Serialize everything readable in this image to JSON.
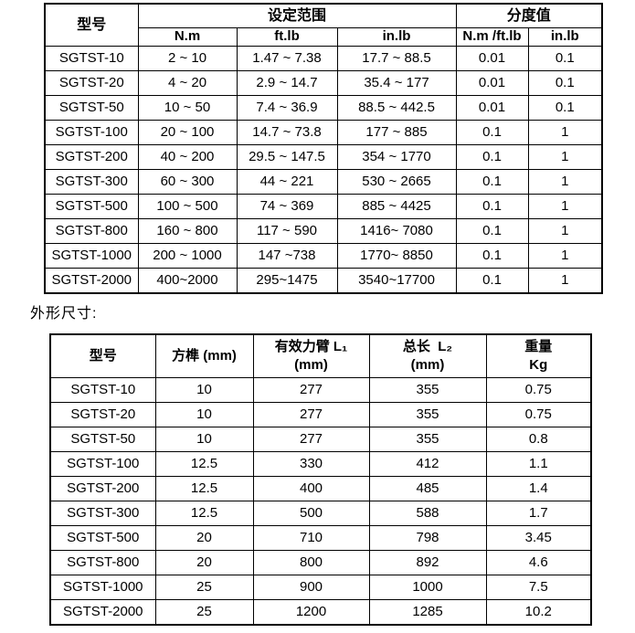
{
  "caption": "外形尺寸:",
  "spec_table": {
    "header": {
      "model": "型号",
      "range_group": "设定范围",
      "division_group": "分度值",
      "units": [
        "N.m",
        "ft.lb",
        "in.lb",
        "N.m /ft.lb",
        "in.lb"
      ]
    },
    "rows": [
      [
        "SGTST-10",
        "2 ~ 10",
        "1.47 ~ 7.38",
        "17.7 ~ 88.5",
        "0.01",
        "0.1"
      ],
      [
        "SGTST-20",
        "4 ~ 20",
        "2.9 ~ 14.7",
        "35.4 ~ 177",
        "0.01",
        "0.1"
      ],
      [
        "SGTST-50",
        "10 ~ 50",
        "7.4 ~ 36.9",
        "88.5 ~ 442.5",
        "0.01",
        "0.1"
      ],
      [
        "SGTST-100",
        "20 ~ 100",
        "14.7 ~ 73.8",
        "177 ~ 885",
        "0.1",
        "1"
      ],
      [
        "SGTST-200",
        "40 ~ 200",
        "29.5 ~ 147.5",
        "354 ~ 1770",
        "0.1",
        "1"
      ],
      [
        "SGTST-300",
        "60 ~ 300",
        "44 ~ 221",
        "530 ~ 2665",
        "0.1",
        "1"
      ],
      [
        "SGTST-500",
        "100 ~ 500",
        "74 ~ 369",
        "885 ~ 4425",
        "0.1",
        "1"
      ],
      [
        "SGTST-800",
        "160 ~ 800",
        "117 ~ 590",
        "1416~ 7080",
        "0.1",
        "1"
      ],
      [
        "SGTST-1000",
        "200 ~ 1000",
        "147 ~738",
        "1770~ 8850",
        "0.1",
        "1"
      ],
      [
        "SGTST-2000",
        "400~2000",
        "295~1475",
        "3540~17700",
        "0.1",
        "1"
      ]
    ]
  },
  "dim_table": {
    "header": {
      "model": "型号",
      "square_drive": "方榫 (mm)",
      "arm_line1": "有效力臂 L₁",
      "arm_line2": "(mm)",
      "length_line1": "总长  L₂",
      "length_line2": "(mm)",
      "weight_line1": "重量",
      "weight_line2": "Kg"
    },
    "rows": [
      [
        "SGTST-10",
        "10",
        "277",
        "355",
        "0.75"
      ],
      [
        "SGTST-20",
        "10",
        "277",
        "355",
        "0.75"
      ],
      [
        "SGTST-50",
        "10",
        "277",
        "355",
        "0.8"
      ],
      [
        "SGTST-100",
        "12.5",
        "330",
        "412",
        "1.1"
      ],
      [
        "SGTST-200",
        "12.5",
        "400",
        "485",
        "1.4"
      ],
      [
        "SGTST-300",
        "12.5",
        "500",
        "588",
        "1.7"
      ],
      [
        "SGTST-500",
        "20",
        "710",
        "798",
        "3.45"
      ],
      [
        "SGTST-800",
        "20",
        "800",
        "892",
        "4.6"
      ],
      [
        "SGTST-1000",
        "25",
        "900",
        "1000",
        "7.5"
      ],
      [
        "SGTST-2000",
        "25",
        "1200",
        "1285",
        "10.2"
      ]
    ]
  }
}
